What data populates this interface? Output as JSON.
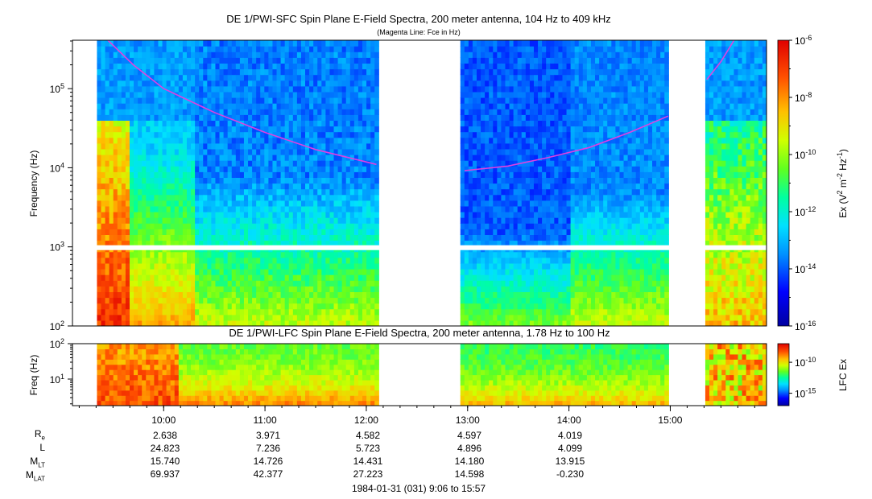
{
  "chart_data": [
    {
      "type": "heatmap",
      "title": "DE 1/PWI-SFC  Spin Plane E-Field Spectra, 200 meter antenna, 104 Hz to 409 kHz",
      "subtitle": "(Magenta Line: Fce in Hz)",
      "ylabel": "Frequency (Hz)",
      "yscale": "log",
      "ylim": [
        100,
        409000
      ],
      "y_ticks": [
        {
          "value": 100,
          "base": "10",
          "exp": "2"
        },
        {
          "value": 1000,
          "base": "10",
          "exp": "3"
        },
        {
          "value": 10000,
          "base": "10",
          "exp": "4"
        },
        {
          "value": 100000,
          "base": "10",
          "exp": "5"
        }
      ],
      "x_range_hours": [
        9.1,
        15.95
      ],
      "data_gaps_hours": [
        [
          12.12,
          12.92
        ],
        [
          15.0,
          15.33
        ]
      ],
      "colorbar": {
        "label_prefix": "Ex (V",
        "label_sup1": "2",
        "label_mid": " m",
        "label_sup2": "-2",
        "label_mid2": " Hz",
        "label_sup3": "-1",
        "label_suffix": ")",
        "log_range": [
          -16,
          -6
        ],
        "ticks": [
          {
            "value": -6,
            "base": "10",
            "exp": "-6"
          },
          {
            "value": -8,
            "base": "10",
            "exp": "-8"
          },
          {
            "value": -10,
            "base": "10",
            "exp": "-10"
          },
          {
            "value": -12,
            "base": "10",
            "exp": "-12"
          },
          {
            "value": -14,
            "base": "10",
            "exp": "-14"
          },
          {
            "value": -16,
            "base": "10",
            "exp": "-16"
          }
        ]
      },
      "fce_line": {
        "color": "#e040e0",
        "segments": [
          {
            "t": [
              9.45,
              9.7,
              10.0,
              10.5,
              11.0,
              11.5,
              12.1
            ],
            "f": [
              409000,
              200000,
              100000,
              50000,
              28000,
              17000,
              11000
            ]
          },
          {
            "t": [
              12.97,
              13.4,
              13.8,
              14.2,
              14.6,
              14.98
            ],
            "f": [
              9200,
              10500,
              13500,
              18000,
              28000,
              45000
            ]
          },
          {
            "t": [
              15.36,
              15.5,
              15.63
            ],
            "f": [
              130000,
              220000,
              409000
            ]
          }
        ]
      }
    },
    {
      "type": "heatmap",
      "title": "DE 1/PWI-LFC  Spin Plane E-Field Spectra, 200 meter antenna, 1.78 Hz to 100 Hz",
      "ylabel": "Freq (Hz)",
      "yscale": "log",
      "ylim": [
        1.78,
        100
      ],
      "y_ticks": [
        {
          "value": 10,
          "base": "10",
          "exp": "1"
        },
        {
          "value": 100,
          "base": "10",
          "exp": "2"
        }
      ],
      "x_ticks": [
        "10:00",
        "11:00",
        "12:00",
        "13:00",
        "14:00",
        "15:00"
      ],
      "x_tick_hours": [
        10,
        11,
        12,
        13,
        14,
        15
      ],
      "colorbar": {
        "label": "LFC Ex",
        "log_range": [
          -17,
          -7
        ],
        "ticks": [
          {
            "value": -10,
            "base": "10",
            "exp": "-10"
          },
          {
            "value": -15,
            "base": "10",
            "exp": "-15"
          }
        ]
      }
    }
  ],
  "ephemeris": {
    "labels": [
      {
        "main": "R",
        "sub": "e"
      },
      {
        "main": "L",
        "sub": ""
      },
      {
        "main": "M",
        "sub": "LT"
      },
      {
        "main": "M",
        "sub": "LAT"
      }
    ],
    "columns": [
      {
        "time": "10:00",
        "values": [
          "2.638",
          "24.823",
          "15.740",
          "69.937"
        ]
      },
      {
        "time": "11:00",
        "values": [
          "3.971",
          "7.236",
          "14.726",
          "42.377"
        ]
      },
      {
        "time": "12:00",
        "values": [
          "4.582",
          "5.723",
          "14.431",
          "27.223"
        ]
      },
      {
        "time": "13:00",
        "values": [
          "4.597",
          "4.896",
          "14.180",
          "14.598"
        ]
      },
      {
        "time": "14:00",
        "values": [
          "4.019",
          "4.099",
          "13.915",
          "-0.230"
        ]
      }
    ]
  },
  "timestamp": "1984-01-31 (031) 9:06 to 15:57"
}
